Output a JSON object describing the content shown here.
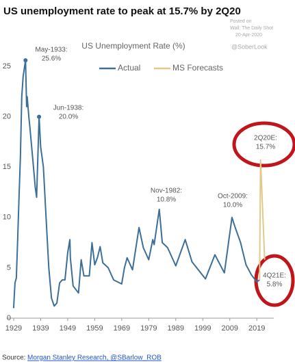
{
  "chart_data": {
    "type": "line",
    "title": "US unemployment rate to peak at 15.7% by 2Q20",
    "subtitle": "US Unemployment Rate (%)",
    "watermark": [
      "Posted on",
      "Wall: The Daily Shot",
      "20-Apr-2020",
      "@SoberLook"
    ],
    "source": "Source:",
    "source_link": "Morgan Stanley Research, @SBarlow_ROB",
    "xlim": [
      1928,
      2023
    ],
    "xticks": [
      1929,
      1939,
      1949,
      1959,
      1969,
      1979,
      1989,
      1999,
      2009,
      2019
    ],
    "ylim": [
      0,
      25
    ],
    "yticks": [
      0,
      5,
      10,
      15,
      20,
      25
    ],
    "grid": false,
    "legend": "top",
    "series": [
      {
        "name": "Actual",
        "color": "#3b6e99",
        "x": [
          1929.0,
          1929.5,
          1930.0,
          1930.5,
          1931.0,
          1931.5,
          1932.0,
          1932.5,
          1933.4,
          1933.8,
          1934.0,
          1934.6,
          1935.0,
          1936.0,
          1937.0,
          1937.5,
          1938.4,
          1939.0,
          1940.0,
          1941.0,
          1942.0,
          1943.0,
          1944.0,
          1945.0,
          1946.0,
          1947.0,
          1948.0,
          1949.0,
          1949.8,
          1950.0,
          1951.0,
          1953.0,
          1954.0,
          1955.0,
          1957.0,
          1958.0,
          1959.0,
          1960.0,
          1961.0,
          1962.0,
          1964.0,
          1966.0,
          1969.0,
          1970.0,
          1971.0,
          1973.0,
          1975.4,
          1977.0,
          1979.0,
          1980.5,
          1981.0,
          1982.9,
          1984.0,
          1986.0,
          1989.0,
          1992.5,
          1995.0,
          2000.0,
          2003.5,
          2007.0,
          2009.8,
          2011.0,
          2013.0,
          2015.0,
          2017.0,
          2019.0,
          2020.0
        ],
        "values": [
          1,
          3.5,
          4,
          8,
          12,
          16,
          22,
          24,
          25.6,
          21,
          22,
          20,
          19,
          16,
          13,
          12,
          20.0,
          17,
          15,
          10,
          5,
          2,
          1.2,
          1.5,
          3.5,
          3.8,
          3.8,
          6.5,
          7.8,
          6,
          3.2,
          2.5,
          5.8,
          4.2,
          4.2,
          7.5,
          5.3,
          6.0,
          7.1,
          5.5,
          5.0,
          3.8,
          3.4,
          5,
          6,
          4.8,
          9,
          7,
          5.8,
          7.8,
          7.3,
          10.8,
          7.5,
          7,
          5.2,
          7.8,
          5.6,
          3.9,
          6.3,
          4.5,
          10.0,
          9,
          7.5,
          5.3,
          4.3,
          3.6,
          3.8
        ]
      },
      {
        "name": "MS Forecasts",
        "color": "#e3c88a",
        "x": [
          2020.0,
          2020.4,
          2021.9
        ],
        "values": [
          3.8,
          15.7,
          5.8
        ]
      }
    ],
    "annotations": [
      [
        "May-1933:",
        "25.6%"
      ],
      [
        "Jun-1938:",
        "20.0%"
      ],
      [
        "Nov-1982:",
        "10.8%"
      ],
      [
        "Oct-2009:",
        "10.0%"
      ],
      [
        "2Q20E:",
        "15.7%"
      ],
      [
        "4Q21E:",
        "5.8%"
      ]
    ]
  }
}
